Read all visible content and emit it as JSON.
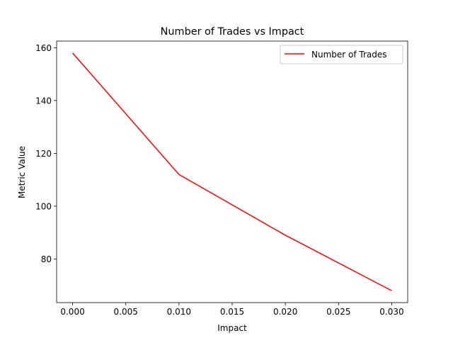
{
  "chart_data": {
    "type": "line",
    "title": "Number of Trades vs Impact",
    "xlabel": "Impact",
    "ylabel": "Metric Value",
    "xlim": [
      -0.0015,
      0.0315
    ],
    "ylim": [
      63.5,
      162.5
    ],
    "xticks": [
      0.0,
      0.005,
      0.01,
      0.015,
      0.02,
      0.025,
      0.03
    ],
    "xtick_labels": [
      "0.000",
      "0.005",
      "0.010",
      "0.015",
      "0.020",
      "0.025",
      "0.030"
    ],
    "yticks": [
      80,
      100,
      120,
      140,
      160
    ],
    "ytick_labels": [
      "80",
      "100",
      "120",
      "140",
      "160"
    ],
    "grid": false,
    "legend_position": "top-right",
    "series": [
      {
        "name": "Number of Trades",
        "color": "#ff0000",
        "x": [
          0.0,
          0.01,
          0.02,
          0.03
        ],
        "y": [
          158,
          112,
          89,
          68
        ]
      }
    ]
  }
}
